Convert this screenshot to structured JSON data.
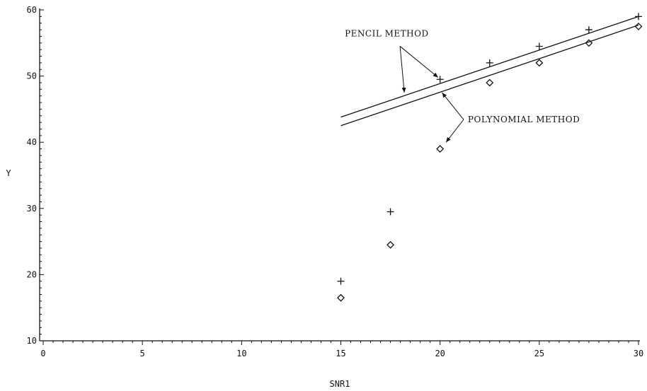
{
  "chart_data": {
    "type": "scatter",
    "xlabel": "SNR1",
    "ylabel": "Y",
    "xlim": [
      0,
      30
    ],
    "ylim": [
      10,
      60
    ],
    "xticks": [
      0,
      5,
      10,
      15,
      20,
      25,
      30
    ],
    "yticks": [
      10,
      20,
      30,
      40,
      50,
      60
    ],
    "grid": false,
    "series": [
      {
        "marker": "plus",
        "x": [
          15,
          17.5,
          20,
          22.5,
          25,
          27.5,
          30
        ],
        "y": [
          19,
          29.5,
          49.5,
          52,
          54.5,
          57,
          59
        ]
      },
      {
        "marker": "diamond",
        "x": [
          15,
          17.5,
          20,
          22.5,
          25,
          27.5,
          30
        ],
        "y": [
          16.5,
          24.5,
          39,
          49,
          52,
          55,
          57.5
        ]
      }
    ],
    "lines": [
      {
        "x": [
          15,
          30
        ],
        "y": [
          43.8,
          59
        ]
      },
      {
        "x": [
          15,
          30
        ],
        "y": [
          42.5,
          57.7
        ]
      }
    ],
    "annotations": [
      {
        "text": "PENCIL METHOD",
        "at": [
          15.2,
          56
        ],
        "arrows_to": [
          [
            19.9,
            49.8
          ],
          [
            18.2,
            47.5
          ]
        ]
      },
      {
        "text": "POLYNOMIAL METHOD",
        "at": [
          21.4,
          43
        ],
        "arrows_to": [
          [
            20.1,
            47.5
          ],
          [
            20.3,
            40
          ]
        ]
      }
    ]
  }
}
